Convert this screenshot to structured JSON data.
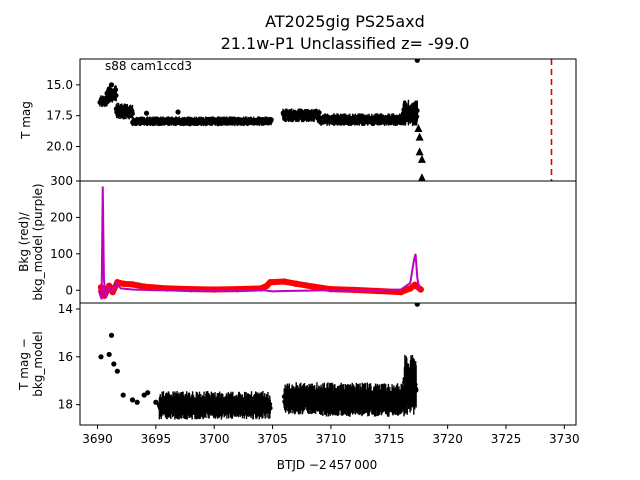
{
  "chart_data": [
    {
      "type": "scatter",
      "title_line1": "AT2025gig  PS25axd",
      "title_line2": "21.1w-P1 Unclassified z= -99.0",
      "annotation": "s88 cam1ccd3",
      "xlabel": "",
      "ylabel": "T mag",
      "xlim": [
        3688.5,
        3731
      ],
      "ylim": [
        22.8,
        12.9
      ],
      "inverted_y": true,
      "yticks": [
        15.0,
        17.5,
        20.0
      ],
      "ytick_labels": [
        "15.0",
        "17.5",
        "20.0"
      ],
      "marker_color": "#000000",
      "vline": {
        "x": 3728.9,
        "color": "#e00000",
        "style": "dashed"
      },
      "segments": [
        {
          "x_start": 3690.2,
          "x_end": 3690.8,
          "y_low": 16.9,
          "y_high": 15.6
        },
        {
          "x_start": 3690.8,
          "x_end": 3691.6,
          "y_low": 16.6,
          "y_high": 14.7
        },
        {
          "x_start": 3691.6,
          "x_end": 3693.0,
          "y_low": 17.9,
          "y_high": 16.2
        },
        {
          "x_start": 3693.0,
          "x_end": 3704.9,
          "y_low": 18.4,
          "y_high": 17.4
        },
        {
          "x_start": 3705.9,
          "x_end": 3709.0,
          "y_low": 18.1,
          "y_high": 16.7
        },
        {
          "x_start": 3709.0,
          "x_end": 3716.2,
          "y_low": 18.4,
          "y_high": 17.1
        },
        {
          "x_start": 3716.2,
          "x_end": 3717.4,
          "y_low": 18.5,
          "y_high": 15.8
        }
      ],
      "points": [
        {
          "x": 3691.2,
          "y": 15.0
        },
        {
          "x": 3694.2,
          "y": 17.3
        },
        {
          "x": 3696.9,
          "y": 17.2
        },
        {
          "x": 3717.4,
          "y": 13.0
        }
      ],
      "upper_limits": [
        {
          "x": 3717.5,
          "y": 18.5
        },
        {
          "x": 3717.6,
          "y": 19.2
        },
        {
          "x": 3717.6,
          "y": 20.4
        },
        {
          "x": 3717.8,
          "y": 21.0
        },
        {
          "x": 3717.8,
          "y": 22.5
        }
      ]
    },
    {
      "type": "line",
      "xlabel": "",
      "ylabel": "Bkg (red)/\nbkg_model (purple)",
      "xlim": [
        3688.5,
        3731
      ],
      "ylim": [
        -35,
        300
      ],
      "yticks": [
        0,
        100,
        200,
        300
      ],
      "ytick_labels": [
        "0",
        "100",
        "200",
        "300"
      ],
      "series": [
        {
          "color": "#ff0000",
          "x": [
            3690.3,
            3690.6,
            3691.0,
            3691.3,
            3691.7,
            3692.2,
            3693.0,
            3694.0,
            3696.0,
            3698.0,
            3700.0,
            3702.0,
            3704.0,
            3704.5,
            3704.8,
            3706.0,
            3707.0,
            3708.5,
            3710.0,
            3712.0,
            3714.0,
            3716.0,
            3716.8,
            3717.2,
            3717.7
          ],
          "y": [
            8,
            -15,
            12,
            -5,
            22,
            18,
            16,
            10,
            5,
            3,
            2,
            3,
            5,
            12,
            22,
            24,
            18,
            10,
            3,
            1,
            -2,
            -5,
            5,
            15,
            2
          ]
        },
        {
          "color": "#bf00bf",
          "x": [
            3690.1,
            3690.35,
            3690.45,
            3690.55,
            3690.7,
            3690.9,
            3691.2,
            3691.6,
            3692.0,
            3693.0,
            3695.0,
            3700.0,
            3704.0,
            3705.0,
            3706.0,
            3710.0,
            3715.0,
            3716.0,
            3716.8,
            3717.1,
            3717.25,
            3717.4,
            3717.6
          ],
          "y": [
            0,
            -25,
            285,
            30,
            -20,
            10,
            -5,
            20,
            5,
            2,
            0,
            -1,
            1,
            -3,
            -2,
            0,
            1,
            2,
            20,
            80,
            100,
            35,
            0
          ]
        }
      ]
    },
    {
      "type": "scatter",
      "xlabel": "BTJD −2 457 000",
      "ylabel": "T mag −\nbkg_model",
      "xlim": [
        3688.5,
        3731
      ],
      "ylim": [
        18.85,
        13.75
      ],
      "inverted_y": true,
      "yticks": [
        14,
        16,
        18
      ],
      "ytick_labels": [
        "14",
        "16",
        "18"
      ],
      "xticks": [
        3690,
        3695,
        3700,
        3705,
        3710,
        3715,
        3720,
        3725,
        3730
      ],
      "xtick_labels": [
        "3690",
        "3695",
        "3700",
        "3705",
        "3710",
        "3715",
        "3720",
        "3725",
        "3730"
      ],
      "marker_color": "#000000",
      "points": [
        {
          "x": 3690.3,
          "y": 16.0
        },
        {
          "x": 3691.0,
          "y": 15.9
        },
        {
          "x": 3691.2,
          "y": 15.1
        },
        {
          "x": 3691.4,
          "y": 16.3
        },
        {
          "x": 3691.7,
          "y": 16.6
        },
        {
          "x": 3692.2,
          "y": 17.6
        },
        {
          "x": 3693.0,
          "y": 17.8
        },
        {
          "x": 3693.4,
          "y": 17.9
        },
        {
          "x": 3694.0,
          "y": 17.6
        },
        {
          "x": 3694.3,
          "y": 17.5
        },
        {
          "x": 3695.0,
          "y": 17.9
        },
        {
          "x": 3717.4,
          "y": 13.8
        }
      ],
      "segments": [
        {
          "x_start": 3695.3,
          "x_end": 3704.8,
          "y_low": 18.7,
          "y_high": 17.2
        },
        {
          "x_start": 3706.0,
          "x_end": 3709.0,
          "y_low": 18.5,
          "y_high": 16.8
        },
        {
          "x_start": 3709.0,
          "x_end": 3716.3,
          "y_low": 18.6,
          "y_high": 16.8
        },
        {
          "x_start": 3716.3,
          "x_end": 3717.3,
          "y_low": 18.6,
          "y_high": 15.4
        }
      ]
    }
  ]
}
